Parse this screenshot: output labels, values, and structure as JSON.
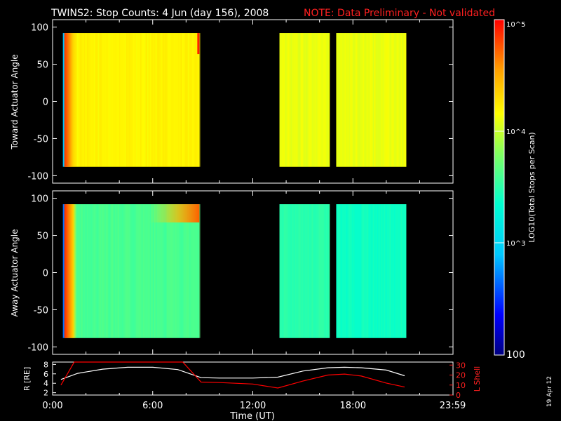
{
  "header": {
    "title": "TWINS2: Stop Counts:  4 Jun (day 156), 2008",
    "note": "NOTE: Data Preliminary - Not validated"
  },
  "footer": {
    "date_stamp": "19 Apr 12"
  },
  "colorbar": {
    "label": "LOG10(Total Stops per Scan)",
    "ticks": [
      "10^5",
      "10^4",
      "10^3",
      "100"
    ]
  },
  "chart_data": [
    {
      "type": "heatmap",
      "ylabel": "Toward Actuator Angle",
      "ylim": [
        -110,
        110
      ],
      "yticks": [
        100,
        50,
        0,
        -50,
        -100
      ],
      "xlim": [
        0,
        24
      ],
      "data_blocks": [
        {
          "start_hr": 0.7,
          "end_hr": 8.8,
          "log_level": 4.2
        },
        {
          "start_hr": 13.6,
          "end_hr": 16.6,
          "log_level": 4.1
        },
        {
          "start_hr": 17.0,
          "end_hr": 21.2,
          "log_level": 4.1
        }
      ],
      "angle_range": [
        -88,
        92
      ]
    },
    {
      "type": "heatmap",
      "ylabel": "Away Actuator Angle",
      "ylim": [
        -110,
        110
      ],
      "yticks": [
        100,
        50,
        0,
        -50,
        -100
      ],
      "xlim": [
        0,
        24
      ],
      "data_blocks": [
        {
          "start_hr": 0.7,
          "end_hr": 8.8,
          "log_level": 3.6
        },
        {
          "start_hr": 13.6,
          "end_hr": 16.6,
          "log_level": 3.5
        },
        {
          "start_hr": 17.0,
          "end_hr": 21.2,
          "log_level": 3.4
        }
      ],
      "angle_range": [
        -88,
        92
      ]
    },
    {
      "type": "line",
      "xlabel": "Time (UT)",
      "xticks": [
        "0:00",
        "6:00",
        "12:00",
        "18:00",
        "23:59"
      ],
      "xtick_hours": [
        0,
        6,
        12,
        18,
        23.98
      ],
      "xlim": [
        0,
        24
      ],
      "left_axis": {
        "label": "R [RE]",
        "ticks": [
          2,
          4,
          6,
          8
        ],
        "ylim": [
          1.5,
          8.5
        ]
      },
      "right_axis": {
        "label": "L Shell",
        "ticks": [
          0,
          10,
          20,
          30
        ],
        "ylim": [
          0,
          33
        ]
      },
      "series": [
        {
          "name": "R",
          "color": "#ffffff",
          "x": [
            0.5,
            1.5,
            3,
            4.5,
            6,
            7.5,
            8.9,
            10,
            12,
            13.5,
            15,
            16.5,
            17.5,
            18.5,
            20,
            21.1
          ],
          "y": [
            4.8,
            6.1,
            7.0,
            7.4,
            7.4,
            6.9,
            5.2,
            5.1,
            5.1,
            5.3,
            6.6,
            7.3,
            7.4,
            7.3,
            6.8,
            5.6
          ]
        },
        {
          "name": "L Shell",
          "color": "#ff0000",
          "x": [
            0.5,
            1.3,
            1.5,
            7.6,
            7.8,
            8.9,
            10,
            12,
            13.5,
            15,
            16.5,
            17.5,
            18.5,
            20,
            21.1
          ],
          "y": [
            10,
            33,
            33,
            33,
            33,
            13,
            12.5,
            11,
            7,
            14,
            20,
            21,
            19,
            12,
            8
          ]
        }
      ]
    }
  ]
}
